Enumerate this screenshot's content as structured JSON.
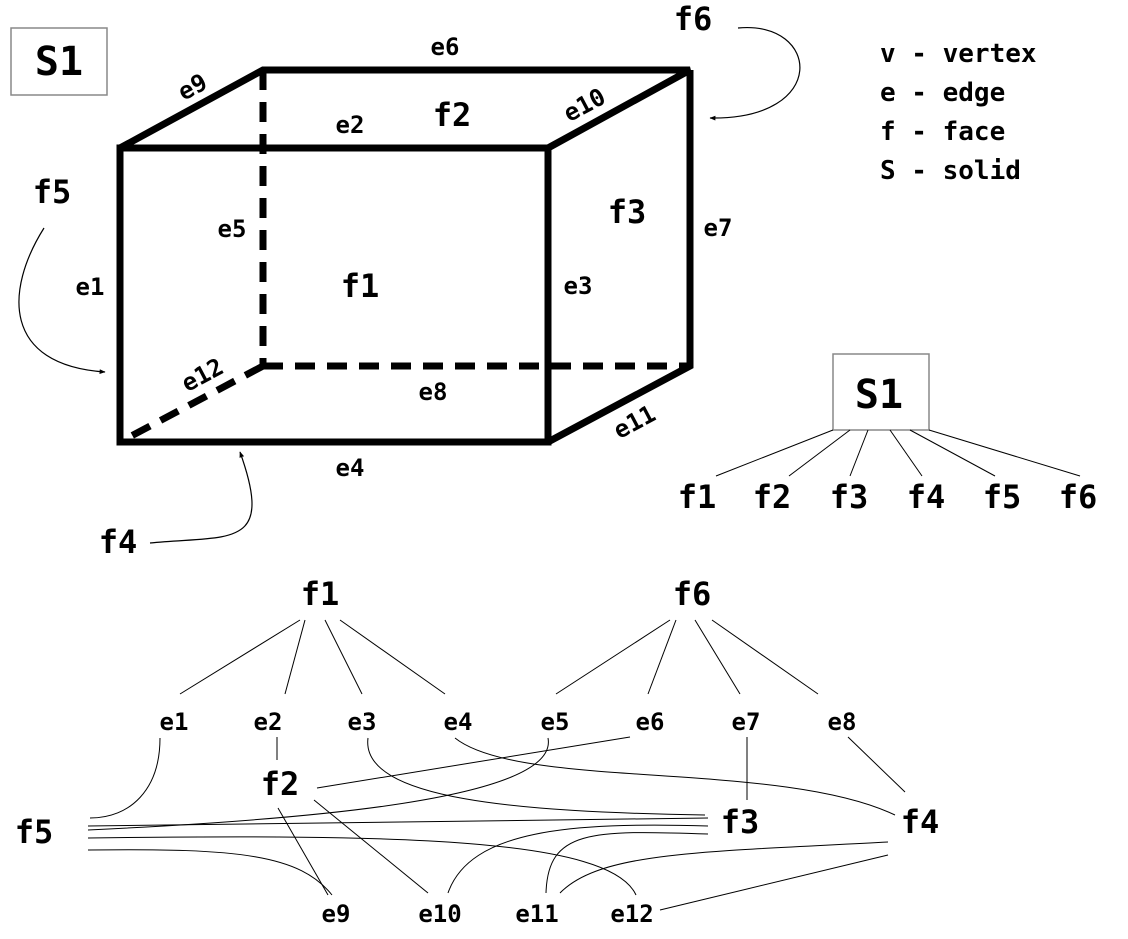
{
  "diagram": {
    "solid_label": "S1",
    "legend": [
      "v - vertex",
      "e - edge",
      "f - face",
      "S - solid"
    ],
    "cube": {
      "faces": {
        "f1": "f1",
        "f2": "f2",
        "f3": "f3",
        "f4": "f4",
        "f5": "f5",
        "f6": "f6"
      },
      "edges": {
        "e1": "e1",
        "e2": "e2",
        "e3": "e3",
        "e4": "e4",
        "e5": "e5",
        "e6": "e6",
        "e7": "e7",
        "e8": "e8",
        "e9": "e9",
        "e10": "e10",
        "e11": "e11",
        "e12": "e12"
      }
    },
    "solid_tree": {
      "root": "S1",
      "children": [
        "f1",
        "f2",
        "f3",
        "f4",
        "f5",
        "f6"
      ]
    },
    "face_edge_graph": {
      "top_faces": [
        "f1",
        "f6"
      ],
      "edges": [
        "e1",
        "e2",
        "e3",
        "e4",
        "e5",
        "e6",
        "e7",
        "e8"
      ],
      "middle_faces": [
        "f2",
        "f5",
        "f3",
        "f4"
      ],
      "bottom_edges": [
        "e9",
        "e10",
        "e11",
        "e12"
      ]
    }
  },
  "colors": {
    "ink": "#000000",
    "background": "#ffffff",
    "box_border": "#888888"
  }
}
